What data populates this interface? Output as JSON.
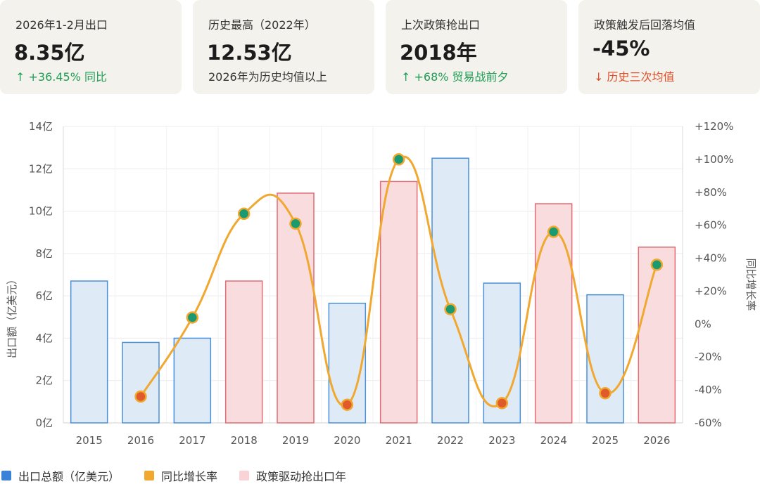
{
  "cards": [
    {
      "label": "2026年1-2月出口",
      "value": "8.35亿",
      "sub": "↑ +36.45% 同比",
      "tone": "up"
    },
    {
      "label": "历史最高（2022年）",
      "value": "12.53亿",
      "sub": "2026年为历史均值以上",
      "tone": "neutral"
    },
    {
      "label": "上次政策抢出口",
      "value": "2018年",
      "sub": "↑ +68% 贸易战前夕",
      "tone": "up"
    },
    {
      "label": "政策触发后回落均值",
      "value": "-45%",
      "sub": "↓ 历史三次均值",
      "tone": "down"
    }
  ],
  "chart_data": {
    "type": "bar+line",
    "categories": [
      "2015",
      "2016",
      "2017",
      "2018",
      "2019",
      "2020",
      "2021",
      "2022",
      "2023",
      "2024",
      "2025",
      "2026"
    ],
    "series": [
      {
        "name": "出口总额（亿美元）",
        "type": "bar",
        "axis": "left",
        "values": [
          6.7,
          3.8,
          4.0,
          6.7,
          10.85,
          5.65,
          11.4,
          12.5,
          6.6,
          10.35,
          6.05,
          8.3
        ]
      },
      {
        "name": "同比增长率",
        "type": "line",
        "axis": "right",
        "values": [
          null,
          -44,
          4,
          67,
          61,
          -49,
          100,
          9,
          -48,
          56,
          -42,
          36
        ]
      }
    ],
    "policy_years": [
      "2018",
      "2019",
      "2021",
      "2024",
      "2026"
    ],
    "legend_policy": "政策驱动抢出口年",
    "ylabel": "出口额（亿美元）",
    "y2label": "同比增长率",
    "ylim": [
      0,
      14
    ],
    "y_ticks": [
      "0亿",
      "2亿",
      "4亿",
      "6亿",
      "8亿",
      "10亿",
      "12亿",
      "14亿"
    ],
    "y2lim": [
      -60,
      120
    ],
    "y2_ticks": [
      "-60%",
      "-40%",
      "-20%",
      "0%",
      "+20%",
      "+40%",
      "+60%",
      "+80%",
      "+100%",
      "+120%"
    ],
    "grid": true,
    "legend_position": "bottom-left",
    "colors": {
      "normal_fill": "#dfeaf7",
      "normal_stroke": "#4a90d9",
      "policy_fill": "#f9dcde",
      "policy_stroke": "#e06c74",
      "line": "#f0a830",
      "point_up": "#1a9a70",
      "point_down": "#e05a2a",
      "legend_bar": "#3a82d8",
      "legend_line": "#f0a830",
      "legend_policy": "#f9d3d6"
    }
  }
}
